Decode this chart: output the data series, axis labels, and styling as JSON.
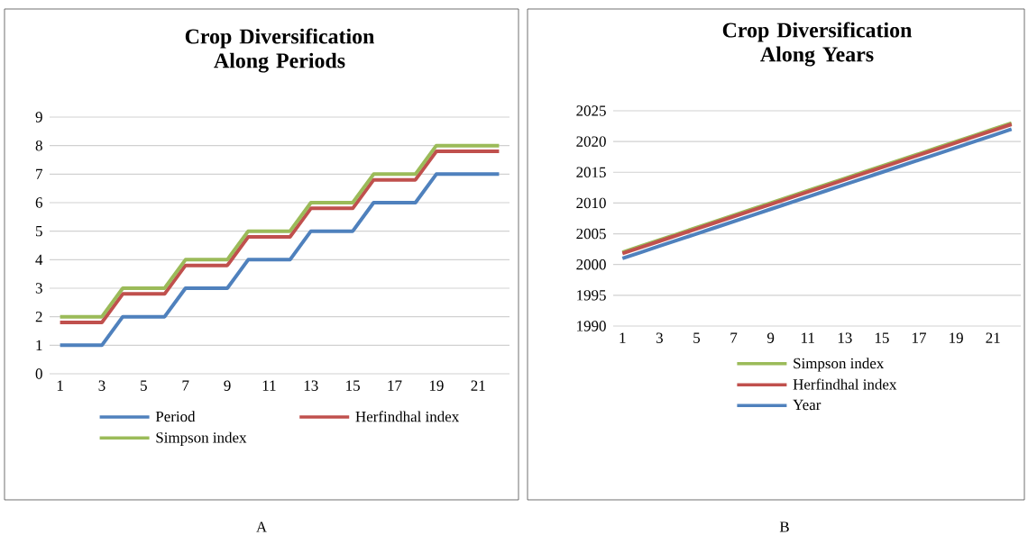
{
  "chart_data": [
    {
      "type": "line",
      "title": "Crop Diversification Along Periods",
      "categories": [
        "1",
        null,
        "3",
        null,
        "5",
        null,
        "7",
        null,
        "9",
        null,
        "11",
        null,
        "13",
        null,
        "15",
        null,
        "17",
        null,
        "19",
        null,
        "21",
        null
      ],
      "series": [
        {
          "name": "Period",
          "color": "#4f81bd",
          "values": [
            1,
            1,
            1,
            2,
            2,
            2,
            3,
            3,
            3,
            4,
            4,
            4,
            5,
            5,
            5,
            6,
            6,
            6,
            7,
            7,
            7,
            7
          ]
        },
        {
          "name": "Herfindhal index",
          "color": "#c0504d",
          "values": [
            1.8,
            1.8,
            1.8,
            2.8,
            2.8,
            2.8,
            3.8,
            3.8,
            3.8,
            4.8,
            4.8,
            4.8,
            5.8,
            5.8,
            5.8,
            6.8,
            6.8,
            6.8,
            7.8,
            7.8,
            7.8,
            7.8
          ]
        },
        {
          "name": "Simpson index",
          "color": "#9bbb59",
          "values": [
            2,
            2,
            2,
            3,
            3,
            3,
            4,
            4,
            4,
            5,
            5,
            5,
            6,
            6,
            6,
            7,
            7,
            7,
            8,
            8,
            8,
            8
          ]
        }
      ],
      "ylim": [
        0,
        9
      ],
      "yticks": [
        0,
        1,
        2,
        3,
        4,
        5,
        6,
        7,
        8,
        9
      ],
      "grid": "y",
      "legend": "bottom",
      "annotations": [
        "A"
      ]
    },
    {
      "type": "line",
      "title": "Crop Diversification Along Years",
      "categories": [
        "1",
        null,
        "3",
        null,
        "5",
        null,
        "7",
        null,
        "9",
        null,
        "11",
        null,
        "13",
        null,
        "15",
        null,
        "17",
        null,
        "19",
        null,
        "21",
        null
      ],
      "series": [
        {
          "name": "Simpson index",
          "color": "#9bbb59",
          "values": [
            2002,
            2003,
            2004,
            2005,
            2006,
            2007,
            2008,
            2009,
            2010,
            2011,
            2012,
            2013,
            2014,
            2015,
            2016,
            2017,
            2018,
            2019,
            2020,
            2021,
            2022,
            2023
          ]
        },
        {
          "name": "Herfindhal index",
          "color": "#c0504d",
          "values": [
            2001.8,
            2002.8,
            2003.8,
            2004.8,
            2005.8,
            2006.8,
            2007.8,
            2008.8,
            2009.8,
            2010.8,
            2011.8,
            2012.8,
            2013.8,
            2014.8,
            2015.8,
            2016.8,
            2017.8,
            2018.8,
            2019.8,
            2020.8,
            2021.8,
            2022.8
          ]
        },
        {
          "name": "Year",
          "color": "#4f81bd",
          "values": [
            2001,
            2002,
            2003,
            2004,
            2005,
            2006,
            2007,
            2008,
            2009,
            2010,
            2011,
            2012,
            2013,
            2014,
            2015,
            2016,
            2017,
            2018,
            2019,
            2020,
            2021,
            2022
          ]
        }
      ],
      "ylim": [
        1990,
        2025
      ],
      "yticks": [
        1990,
        1995,
        2000,
        2005,
        2010,
        2015,
        2020,
        2025
      ],
      "grid": "y",
      "legend": "bottom",
      "annotations": [
        "B"
      ]
    }
  ]
}
